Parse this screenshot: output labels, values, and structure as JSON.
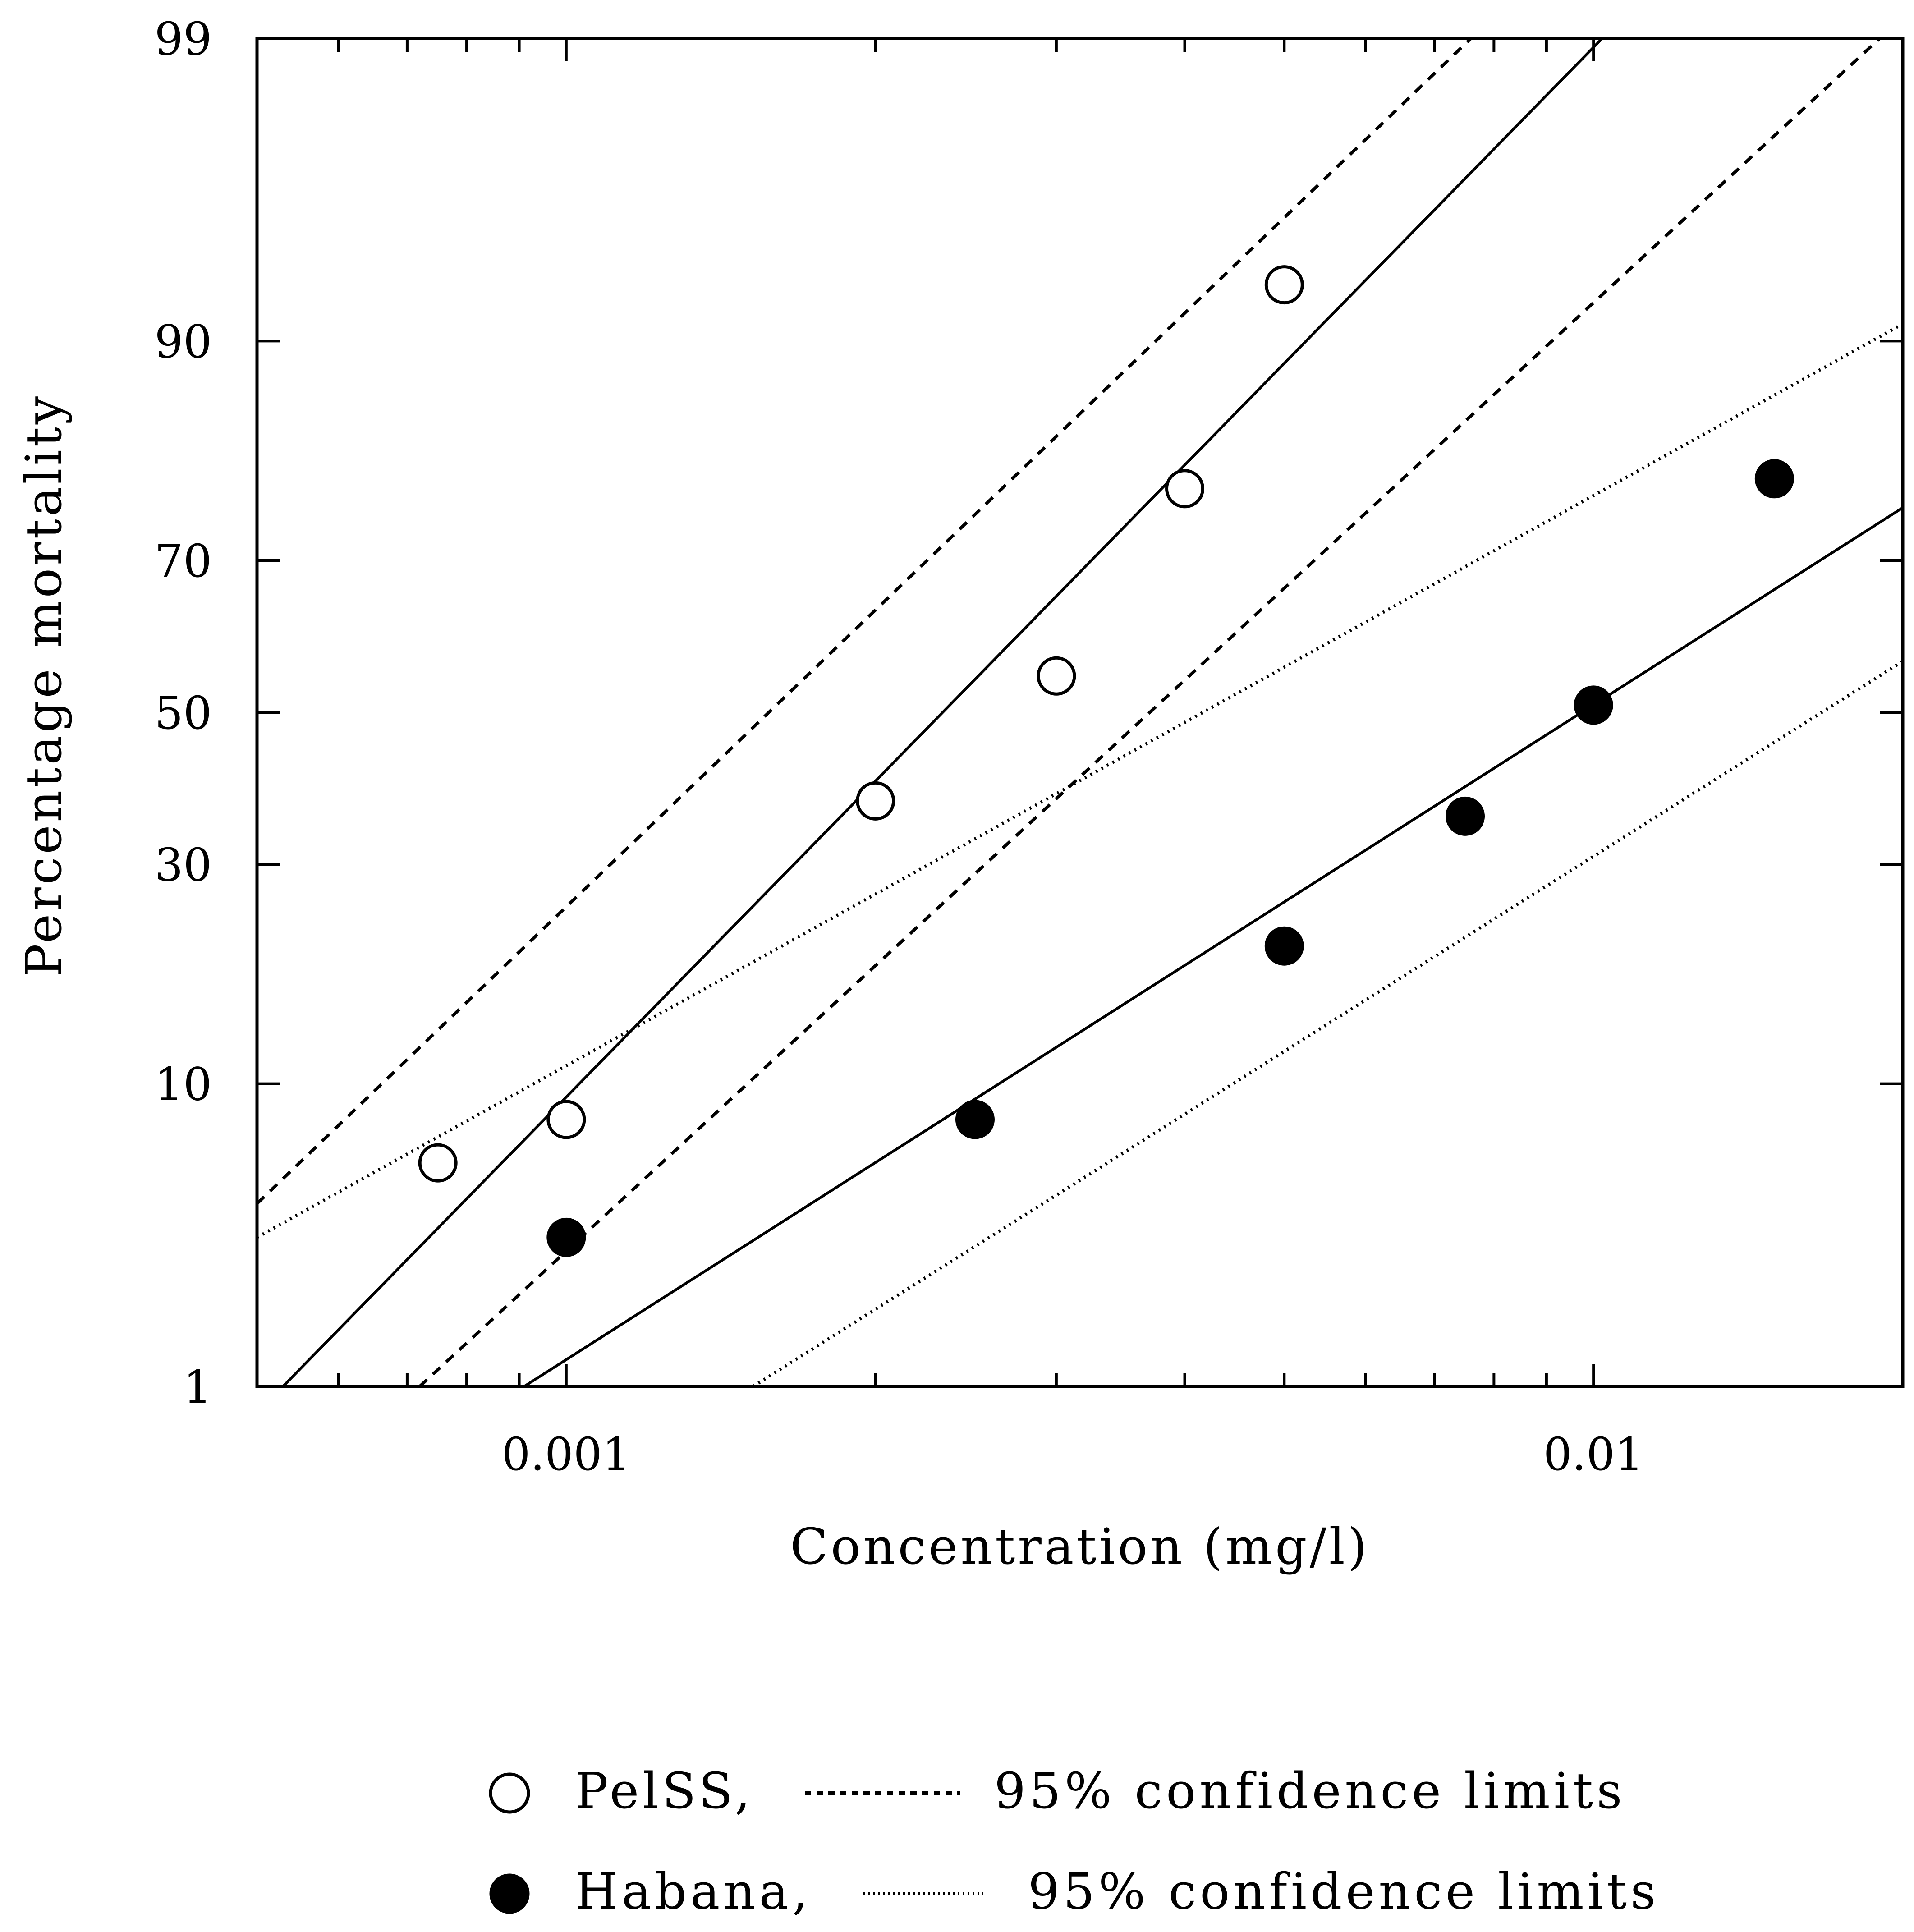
{
  "chart_data": {
    "type": "scatter",
    "title": "",
    "xlabel": "Concentration (mg/l)",
    "ylabel": "Percentage mortality",
    "x_scale": "log",
    "y_scale": "probit",
    "xlim": [
      0.0005,
      0.02
    ],
    "ylim": [
      1,
      99
    ],
    "x_tick_labels": [
      "0.001",
      "0.01"
    ],
    "x_major_ticks": [
      0.001,
      0.01
    ],
    "y_tick_labels": [
      "1",
      "10",
      "30",
      "50",
      "70",
      "90",
      "99"
    ],
    "y_ticks": [
      1,
      10,
      30,
      50,
      70,
      90,
      99
    ],
    "grid": false,
    "legend_position": "bottom",
    "series": [
      {
        "name": "PelSS",
        "marker": "open-circle",
        "color": "#000000",
        "points": [
          {
            "x": 0.00075,
            "y": 6
          },
          {
            "x": 0.001,
            "y": 8
          },
          {
            "x": 0.002,
            "y": 38
          },
          {
            "x": 0.003,
            "y": 55
          },
          {
            "x": 0.004,
            "y": 78
          },
          {
            "x": 0.005,
            "y": 93
          }
        ],
        "fit_line": {
          "style": "solid",
          "x": [
            0.00053,
            0.0102
          ],
          "y": [
            1,
            99
          ]
        },
        "confidence_limits": [
          {
            "style": "dashed",
            "x": [
              0.0005,
              0.0076
            ],
            "y": [
              4.5,
              99
            ]
          },
          {
            "style": "dashed",
            "x": [
              0.00072,
              0.019
            ],
            "y": [
              1,
              99
            ]
          }
        ]
      },
      {
        "name": "Habana",
        "marker": "filled-circle",
        "color": "#000000",
        "points": [
          {
            "x": 0.001,
            "y": 3.5
          },
          {
            "x": 0.0025,
            "y": 8
          },
          {
            "x": 0.005,
            "y": 21
          },
          {
            "x": 0.0075,
            "y": 36
          },
          {
            "x": 0.01,
            "y": 51
          },
          {
            "x": 0.015,
            "y": 79
          }
        ],
        "fit_line": {
          "style": "solid",
          "x": [
            0.00091,
            0.02
          ],
          "y": [
            1,
            76
          ]
        },
        "confidence_limits": [
          {
            "style": "dotted",
            "x": [
              0.0005,
              0.02
            ],
            "y": [
              3.5,
              91
            ]
          },
          {
            "style": "dotted",
            "x": [
              0.00152,
              0.02
            ],
            "y": [
              1,
              57
            ]
          }
        ]
      }
    ],
    "legend": [
      {
        "marker": "open-circle",
        "line_style": "dashed",
        "series": "PelSS,",
        "text": "95% confidence limits"
      },
      {
        "marker": "filled-circle",
        "line_style": "dotted",
        "series": "Habana,",
        "text": "95% confidence limits"
      }
    ]
  }
}
